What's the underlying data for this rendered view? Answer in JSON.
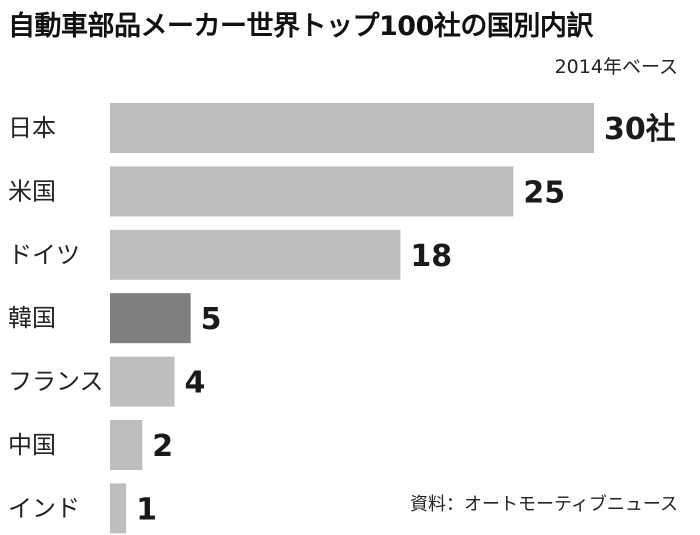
{
  "chart_data": {
    "type": "bar",
    "orientation": "horizontal",
    "title": "自動車部品メーカー世界トップ100社の国別内訳",
    "subtitle": "2014年ベース",
    "source": "資料：オートモーティブニュース",
    "categories": [
      "日本",
      "米国",
      "ドイツ",
      "韓国",
      "フランス",
      "中国",
      "インド"
    ],
    "values": [
      30,
      25,
      18,
      5,
      4,
      2,
      1
    ],
    "value_labels": [
      "30社",
      "25",
      "18",
      "5",
      "4",
      "2",
      "1"
    ],
    "xlim": [
      0,
      30
    ],
    "grid": false,
    "legend": "none",
    "colors": {
      "bar": "#bebebe",
      "highlight_bar": "#7f7f7f",
      "text": "#1a1a1a"
    },
    "highlight_category": "韓国"
  }
}
